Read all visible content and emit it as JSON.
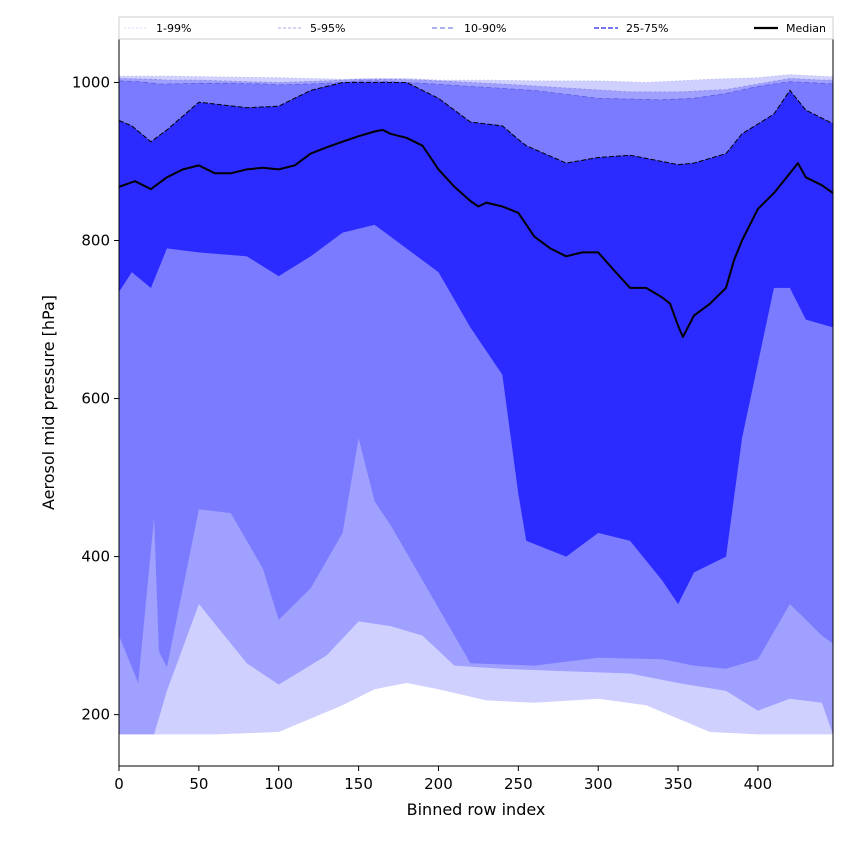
{
  "chart_data": {
    "type": "area",
    "xlabel": "Binned row index",
    "ylabel": "Aerosol mid pressure [hPa]",
    "xlim": [
      0,
      447
    ],
    "ylim": [
      135,
      1055
    ],
    "xticks": [
      0,
      50,
      100,
      150,
      200,
      250,
      300,
      350,
      400
    ],
    "yticks": [
      200,
      400,
      600,
      800,
      1000
    ],
    "grid": false,
    "legend_position": "top",
    "colors": {
      "band_1_99": "#d0d0ff",
      "band_5_95": "#a0a0ff",
      "band_10_90": "#7b7bff",
      "band_25_75": "#5858ff",
      "core": "#2b2bff",
      "median": "#000000"
    },
    "bands": [
      {
        "name": "1-99%",
        "x": [
          0,
          30,
          60,
          100,
          140,
          160,
          180,
          200,
          230,
          260,
          300,
          330,
          350,
          370,
          400,
          420,
          447
        ],
        "lower": [
          175,
          175,
          175,
          178,
          212,
          232,
          240,
          232,
          218,
          215,
          220,
          212,
          195,
          178,
          175,
          175,
          175
        ],
        "upper": [
          1008,
          1008,
          1007,
          1006,
          1004,
          1005,
          1005,
          1003,
          1003,
          1002,
          1002,
          1000,
          1002,
          1004,
          1006,
          1010,
          1007
        ]
      },
      {
        "name": "5-95%",
        "x": [
          0,
          22,
          30,
          50,
          80,
          100,
          130,
          150,
          170,
          190,
          210,
          240,
          280,
          320,
          350,
          380,
          400,
          420,
          440,
          447
        ],
        "lower": [
          175,
          175,
          230,
          340,
          265,
          238,
          275,
          318,
          312,
          300,
          262,
          258,
          255,
          252,
          240,
          230,
          205,
          220,
          215,
          175
        ],
        "upper": [
          1005,
          1004,
          1003,
          1003,
          1001,
          1000,
          1002,
          1004,
          1004,
          1003,
          1001,
          998,
          993,
          988,
          988,
          991,
          998,
          1005,
          1003,
          1003
        ]
      },
      {
        "name": "10-90%",
        "x": [
          0,
          12,
          22,
          25,
          30,
          50,
          70,
          90,
          100,
          120,
          140,
          150,
          160,
          170,
          190,
          220,
          260,
          300,
          340,
          360,
          380,
          400,
          420,
          440,
          447
        ],
        "lower": [
          300,
          240,
          450,
          280,
          260,
          460,
          455,
          385,
          320,
          360,
          430,
          550,
          470,
          440,
          370,
          265,
          262,
          272,
          270,
          262,
          258,
          270,
          340,
          300,
          290
        ],
        "upper": [
          1002,
          1001,
          999,
          998,
          998,
          999,
          999,
          998,
          997,
          998,
          1000,
          1002,
          1002,
          1001,
          999,
          995,
          990,
          980,
          978,
          980,
          986,
          995,
          1001,
          999,
          998
        ]
      },
      {
        "name": "25-75%",
        "x": [
          0,
          8,
          20,
          30,
          50,
          80,
          100,
          120,
          140,
          160,
          180,
          200,
          220,
          240,
          250,
          255,
          280,
          300,
          320,
          340,
          350,
          360,
          380,
          390,
          410,
          420,
          430,
          447
        ],
        "lower": [
          735,
          760,
          740,
          790,
          785,
          780,
          755,
          780,
          810,
          820,
          790,
          760,
          690,
          630,
          480,
          420,
          400,
          430,
          420,
          370,
          340,
          380,
          400,
          550,
          740,
          740,
          700,
          690
        ],
        "upper": [
          952,
          945,
          925,
          940,
          975,
          968,
          970,
          990,
          1000,
          1000,
          1000,
          980,
          950,
          945,
          928,
          920,
          898,
          905,
          908,
          900,
          896,
          898,
          910,
          935,
          960,
          990,
          965,
          948
        ]
      }
    ],
    "series": [
      {
        "name": "Median",
        "x": [
          0,
          10,
          20,
          30,
          40,
          50,
          60,
          70,
          80,
          90,
          100,
          110,
          120,
          130,
          140,
          150,
          160,
          165,
          170,
          180,
          190,
          195,
          200,
          210,
          220,
          225,
          230,
          240,
          250,
          260,
          270,
          280,
          290,
          300,
          310,
          320,
          330,
          340,
          345,
          350,
          353,
          360,
          370,
          380,
          385,
          390,
          400,
          410,
          420,
          425,
          430,
          440,
          447
        ],
        "values": [
          868,
          875,
          865,
          880,
          890,
          895,
          885,
          885,
          890,
          892,
          890,
          895,
          910,
          918,
          925,
          932,
          938,
          940,
          935,
          930,
          920,
          905,
          890,
          868,
          850,
          843,
          848,
          843,
          835,
          805,
          790,
          780,
          785,
          785,
          762,
          740,
          740,
          728,
          720,
          692,
          678,
          705,
          720,
          740,
          775,
          800,
          840,
          860,
          885,
          898,
          880,
          870,
          860
        ]
      }
    ],
    "legend": [
      "1-99%",
      "5-95%",
      "10-90%",
      "25-75%",
      "Median"
    ]
  }
}
